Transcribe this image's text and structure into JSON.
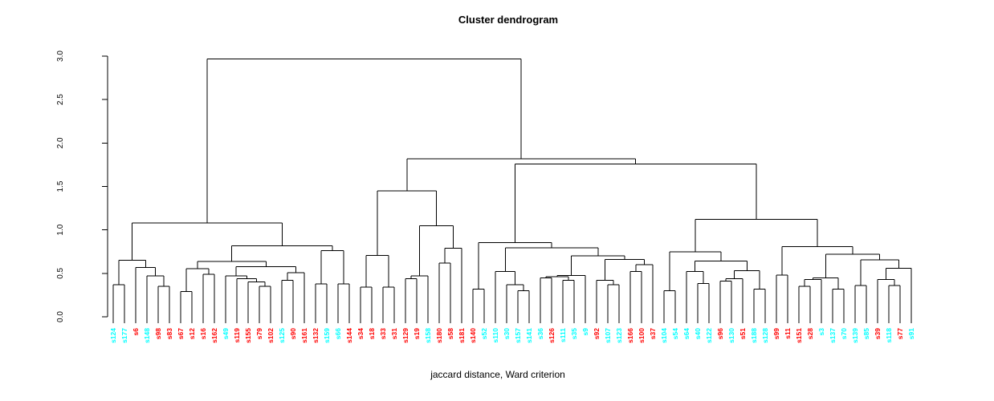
{
  "title": "Cluster dendrogram",
  "xlabel": "jaccard distance, Ward criterion",
  "chart_data": {
    "type": "dendrogram",
    "orientation": "vertical",
    "ylim": [
      0,
      3
    ],
    "yticks": [
      "0.0",
      "0.5",
      "1.0",
      "1.5",
      "2.0",
      "2.5",
      "3.0"
    ],
    "grid": false,
    "legend": "none",
    "line_color": "#000000",
    "leaf_color_hex": {
      "red": "#FF0000",
      "cyan": "#00FFFF"
    },
    "leaves": [
      [
        "s124",
        "cyan"
      ],
      [
        "s177",
        "cyan"
      ],
      [
        "s6",
        "red"
      ],
      [
        "s148",
        "cyan"
      ],
      [
        "s98",
        "red"
      ],
      [
        "s83",
        "red"
      ],
      [
        "s67",
        "red"
      ],
      [
        "s12",
        "red"
      ],
      [
        "s16",
        "red"
      ],
      [
        "s162",
        "red"
      ],
      [
        "s49",
        "cyan"
      ],
      [
        "s119",
        "red"
      ],
      [
        "s155",
        "red"
      ],
      [
        "s79",
        "red"
      ],
      [
        "s102",
        "red"
      ],
      [
        "s125",
        "cyan"
      ],
      [
        "s90",
        "red"
      ],
      [
        "s161",
        "red"
      ],
      [
        "s132",
        "red"
      ],
      [
        "s159",
        "cyan"
      ],
      [
        "s66",
        "cyan"
      ],
      [
        "s144",
        "red"
      ],
      [
        "s34",
        "red"
      ],
      [
        "s18",
        "red"
      ],
      [
        "s33",
        "red"
      ],
      [
        "s31",
        "red"
      ],
      [
        "s129",
        "red"
      ],
      [
        "s19",
        "red"
      ],
      [
        "s158",
        "cyan"
      ],
      [
        "s180",
        "red"
      ],
      [
        "s58",
        "red"
      ],
      [
        "s181",
        "red"
      ],
      [
        "s140",
        "red"
      ],
      [
        "s52",
        "cyan"
      ],
      [
        "s110",
        "cyan"
      ],
      [
        "s30",
        "cyan"
      ],
      [
        "s157",
        "cyan"
      ],
      [
        "s141",
        "cyan"
      ],
      [
        "s36",
        "cyan"
      ],
      [
        "s126",
        "red"
      ],
      [
        "s111",
        "cyan"
      ],
      [
        "s35",
        "cyan"
      ],
      [
        "s9",
        "cyan"
      ],
      [
        "s92",
        "red"
      ],
      [
        "s107",
        "cyan"
      ],
      [
        "s123",
        "cyan"
      ],
      [
        "s166",
        "red"
      ],
      [
        "s100",
        "red"
      ],
      [
        "s37",
        "red"
      ],
      [
        "s104",
        "cyan"
      ],
      [
        "s54",
        "cyan"
      ],
      [
        "s64",
        "cyan"
      ],
      [
        "s40",
        "cyan"
      ],
      [
        "s122",
        "cyan"
      ],
      [
        "s96",
        "red"
      ],
      [
        "s130",
        "cyan"
      ],
      [
        "s51",
        "red"
      ],
      [
        "s188",
        "cyan"
      ],
      [
        "s128",
        "cyan"
      ],
      [
        "s99",
        "red"
      ],
      [
        "s11",
        "red"
      ],
      [
        "s151",
        "red"
      ],
      [
        "s28",
        "red"
      ],
      [
        "s3",
        "cyan"
      ],
      [
        "s137",
        "cyan"
      ],
      [
        "s70",
        "cyan"
      ],
      [
        "s139",
        "cyan"
      ],
      [
        "s85",
        "cyan"
      ],
      [
        "s39",
        "red"
      ],
      [
        "s118",
        "cyan"
      ],
      [
        "s77",
        "red"
      ],
      [
        "s91",
        "cyan"
      ]
    ],
    "tree": [
      2.97,
      [
        1.08,
        [
          0.65,
          [
            0.37,
            "s124",
            "s177"
          ],
          [
            0.57,
            "s6",
            [
              0.47,
              "s148",
              [
                0.35,
                "s98",
                "s83"
              ]
            ]
          ]
        ],
        [
          0.815,
          [
            0.637,
            [
              0.554,
              [
                0.29,
                "s67",
                "s12"
              ],
              [
                0.49,
                "s16",
                "s162"
              ]
            ],
            [
              0.575,
              [
                0.47,
                "s49",
                [
                  0.44,
                  "s119",
                  [
                    0.4,
                    "s155",
                    [
                      0.35,
                      "s79",
                      "s102"
                    ]
                  ]
                ]
              ],
              [
                0.51,
                [
                  0.42,
                  "s125",
                  "s90"
                ],
                "s161"
              ]
            ]
          ],
          [
            0.763,
            [
              0.38,
              "s132",
              "s159"
            ],
            [
              0.38,
              "s66",
              "s144"
            ]
          ]
        ]
      ],
      [
        1.82,
        [
          1.447,
          [
            0.708,
            [
              0.34,
              "s34",
              "s18"
            ],
            [
              0.34,
              "s33",
              "s31"
            ]
          ],
          [
            1.046,
            [
              0.47,
              [
                0.44,
                "s129",
                "s19"
              ],
              "s158"
            ],
            [
              0.79,
              [
                0.62,
                "s180",
                "s58"
              ],
              "s181"
            ]
          ]
        ],
        [
          1.76,
          [
            0.856,
            [
              0.32,
              "s140",
              "s52"
            ],
            [
              0.794,
              [
                0.52,
                "s110",
                [
                  0.37,
                  "s30",
                  [
                    0.3,
                    "s157",
                    "s141"
                  ]
                ]
              ],
              [
                0.7,
                [
                  0.475,
                  [
                    0.46,
                    [
                      0.45,
                      "s36",
                      "s126"
                    ],
                    [
                      0.42,
                      "s111",
                      "s35"
                    ]
                  ],
                  "s9"
                ],
                [
                  0.66,
                  [
                    0.42,
                    "s92",
                    [
                      0.37,
                      "s107",
                      "s123"
                    ]
                  ],
                  [
                    0.6,
                    [
                      0.52,
                      "s166",
                      "s100"
                    ],
                    "s37"
                  ]
                ]
              ]
            ]
          ],
          [
            1.12,
            [
              0.75,
              [
                0.3,
                "s104",
                "s54"
              ],
              [
                0.64,
                [
                  0.52,
                  "s64",
                  [
                    0.385,
                    "s40",
                    "s122"
                  ]
                ],
                [
                  0.53,
                  [
                    0.44,
                    [
                      0.41,
                      "s96",
                      "s130"
                    ],
                    "s51"
                  ],
                  [
                    0.32,
                    "s188",
                    "s128"
                  ]
                ]
              ]
            ],
            [
              0.81,
              [
                0.48,
                "s99",
                "s11"
              ],
              [
                0.72,
                [
                  0.45,
                  [
                    0.43,
                    [
                      0.35,
                      "s151",
                      "s28"
                    ],
                    "s3"
                  ],
                  [
                    0.32,
                    "s137",
                    "s70"
                  ]
                ],
                [
                  0.655,
                  [
                    0.36,
                    "s139",
                    "s85"
                  ],
                  [
                    0.56,
                    [
                      0.43,
                      "s39",
                      [
                        0.36,
                        "s118",
                        "s77"
                      ]
                    ],
                    "s91"
                  ]
                ]
              ]
            ]
          ]
        ]
      ]
    ]
  }
}
